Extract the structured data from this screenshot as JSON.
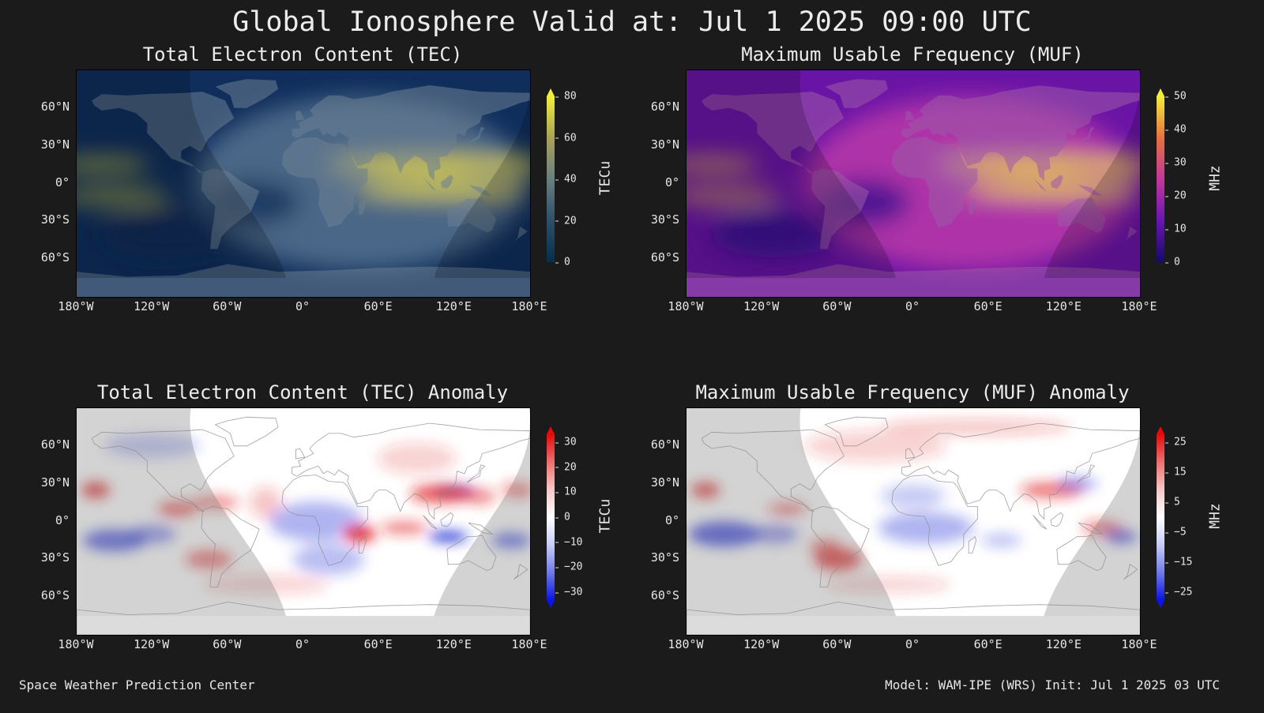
{
  "title": "Global Ionosphere Valid at: Jul 1 2025 09:00 UTC",
  "lat_ticks": [
    "60°N",
    "30°N",
    "0°",
    "30°S",
    "60°S"
  ],
  "lon_ticks": [
    "180°W",
    "120°W",
    "60°W",
    "0°",
    "60°E",
    "120°E",
    "180°E"
  ],
  "panels": {
    "tec": {
      "title": "Total Electron Content (TEC)",
      "unit": "TECu",
      "ticks": [
        "80",
        "60",
        "40",
        "20",
        "0"
      ],
      "colors": {
        "low": "#0b2a55",
        "mid": "#5e7a96",
        "high": "#f4e33a",
        "ocean": "#0f2e5c",
        "land": "#6b8092"
      }
    },
    "muf": {
      "title": "Maximum Usable Frequency (MUF)",
      "unit": "MHz",
      "ticks": [
        "50",
        "40",
        "30",
        "20",
        "10",
        "0"
      ],
      "colors": {
        "low": "#2a0a8a",
        "mid": "#c43ca8",
        "high": "#f3e22e",
        "ocean": "#6a14a6",
        "land": "#9c5aa8"
      }
    },
    "tec_anom": {
      "title": "Total Electron Content (TEC) Anomaly",
      "unit": "TECu",
      "ticks": [
        "30",
        "20",
        "10",
        "0",
        "−10",
        "−20",
        "−30"
      ],
      "colors": {
        "neg": "#1f2bd6",
        "zero": "#ffffff",
        "pos": "#e11f1f"
      }
    },
    "muf_anom": {
      "title": "Maximum Usable Frequency (MUF) Anomaly",
      "unit": "MHz",
      "ticks": [
        "25",
        "15",
        "5",
        "−5",
        "−15",
        "−25"
      ],
      "colors": {
        "neg": "#1f2bd6",
        "zero": "#ffffff",
        "pos": "#e11f1f"
      }
    }
  },
  "footer": {
    "left": "Space Weather Prediction Center",
    "right": "Model: WAM-IPE (WRS) Init: Jul 1 2025 03 UTC"
  }
}
